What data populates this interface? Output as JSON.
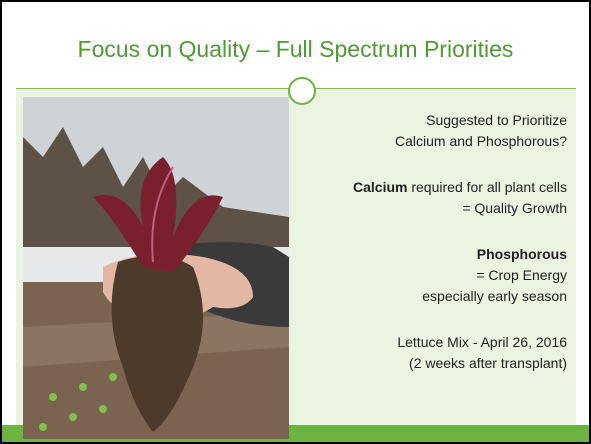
{
  "title": "Focus on Quality – Full Spectrum Priorities",
  "intro": [
    "Suggested to Prioritize",
    "Calcium and Phosphorous?"
  ],
  "calcium": {
    "term": "Calcium",
    "text": "required for all plant cells",
    "result": "= Quality Growth"
  },
  "phosphorous": {
    "term": "Phosphorous",
    "result": "= Crop Energy",
    "note": "especially early season"
  },
  "caption": [
    "Lettuce Mix - April 26, 2016",
    "(2 weeks after transplant)"
  ]
}
